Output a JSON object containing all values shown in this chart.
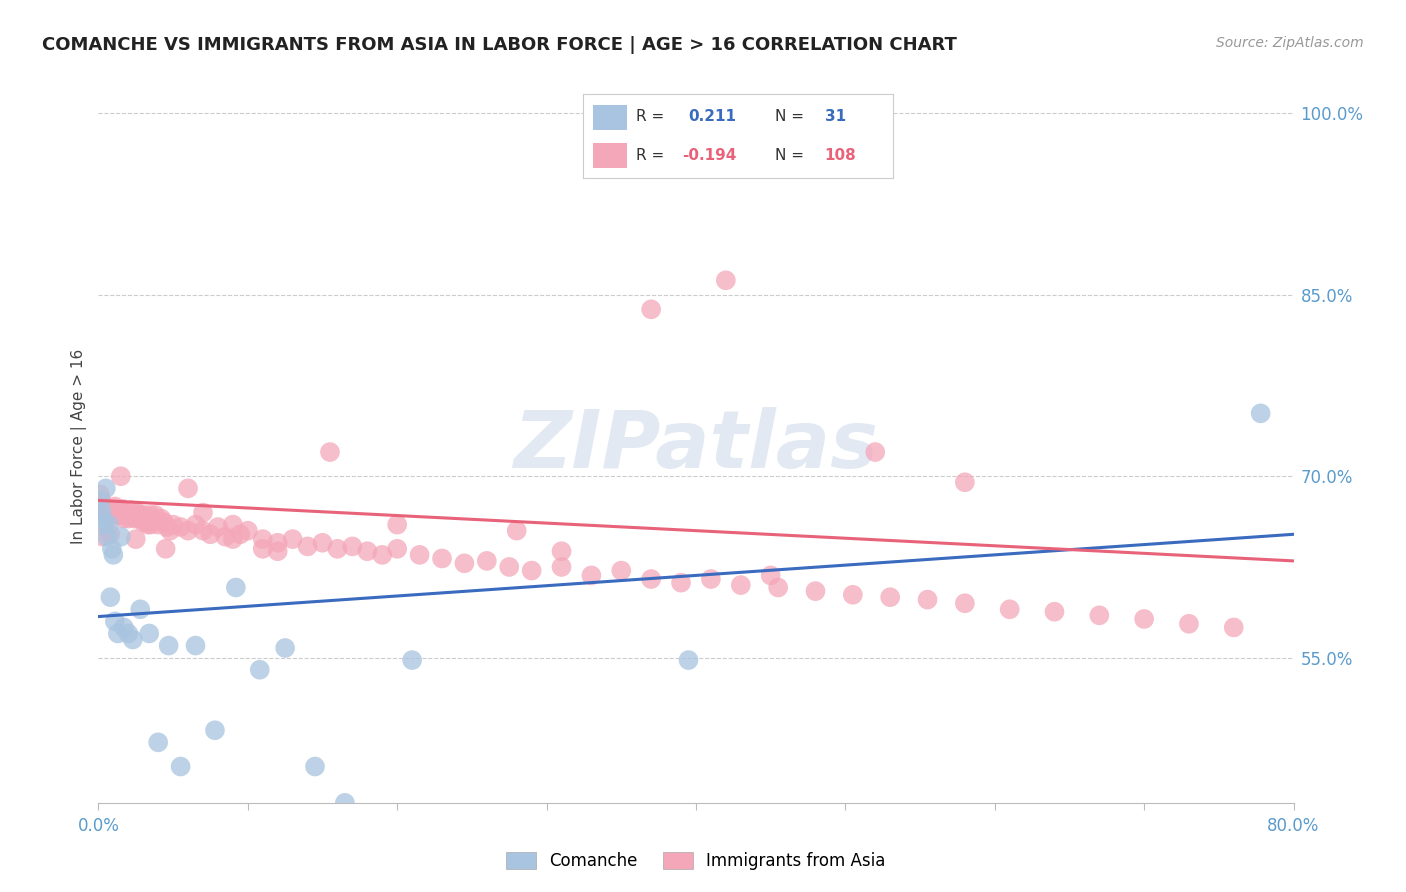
{
  "title": "COMANCHE VS IMMIGRANTS FROM ASIA IN LABOR FORCE | AGE > 16 CORRELATION CHART",
  "source": "Source: ZipAtlas.com",
  "ylabel": "In Labor Force | Age > 16",
  "xlim": [
    0.0,
    0.8
  ],
  "ylim": [
    0.43,
    1.02
  ],
  "yticks_right": [
    0.55,
    0.7,
    0.85,
    1.0
  ],
  "ytick_right_labels": [
    "55.0%",
    "70.0%",
    "85.0%",
    "100.0%"
  ],
  "comanche_color": "#a8c4e0",
  "asia_color": "#f4a7b9",
  "comanche_line_color": "#3a6bbf",
  "asia_line_color": "#e8637a",
  "background_color": "#ffffff",
  "grid_color": "#cccccc",
  "comanche_x": [
    0.001,
    0.002,
    0.003,
    0.004,
    0.005,
    0.006,
    0.007,
    0.008,
    0.009,
    0.01,
    0.011,
    0.013,
    0.015,
    0.017,
    0.02,
    0.023,
    0.028,
    0.034,
    0.04,
    0.047,
    0.055,
    0.065,
    0.078,
    0.092,
    0.108,
    0.125,
    0.145,
    0.165,
    0.21,
    0.395,
    0.778
  ],
  "comanche_y": [
    0.68,
    0.672,
    0.665,
    0.66,
    0.69,
    0.65,
    0.66,
    0.6,
    0.64,
    0.635,
    0.58,
    0.57,
    0.65,
    0.575,
    0.57,
    0.565,
    0.59,
    0.57,
    0.48,
    0.56,
    0.46,
    0.56,
    0.49,
    0.608,
    0.54,
    0.558,
    0.46,
    0.43,
    0.548,
    0.548,
    0.752
  ],
  "asia_x": [
    0.001,
    0.002,
    0.003,
    0.004,
    0.005,
    0.006,
    0.007,
    0.008,
    0.009,
    0.01,
    0.011,
    0.012,
    0.013,
    0.014,
    0.015,
    0.016,
    0.017,
    0.018,
    0.019,
    0.02,
    0.021,
    0.022,
    0.023,
    0.024,
    0.025,
    0.026,
    0.027,
    0.028,
    0.029,
    0.03,
    0.031,
    0.032,
    0.033,
    0.034,
    0.035,
    0.036,
    0.038,
    0.04,
    0.042,
    0.044,
    0.046,
    0.048,
    0.05,
    0.055,
    0.06,
    0.065,
    0.07,
    0.075,
    0.08,
    0.085,
    0.09,
    0.095,
    0.1,
    0.11,
    0.12,
    0.13,
    0.14,
    0.15,
    0.16,
    0.17,
    0.18,
    0.19,
    0.2,
    0.215,
    0.23,
    0.245,
    0.26,
    0.275,
    0.29,
    0.31,
    0.33,
    0.35,
    0.37,
    0.39,
    0.41,
    0.43,
    0.455,
    0.48,
    0.505,
    0.53,
    0.555,
    0.58,
    0.61,
    0.64,
    0.67,
    0.7,
    0.73,
    0.76,
    0.37,
    0.42,
    0.52,
    0.58,
    0.31,
    0.155,
    0.28,
    0.45,
    0.06,
    0.09,
    0.12,
    0.2,
    0.015,
    0.035,
    0.07,
    0.11,
    0.003,
    0.008,
    0.025,
    0.045
  ],
  "asia_y": [
    0.685,
    0.68,
    0.675,
    0.672,
    0.673,
    0.668,
    0.672,
    0.67,
    0.668,
    0.673,
    0.675,
    0.67,
    0.668,
    0.672,
    0.668,
    0.673,
    0.665,
    0.668,
    0.67,
    0.665,
    0.668,
    0.672,
    0.668,
    0.665,
    0.668,
    0.67,
    0.665,
    0.668,
    0.665,
    0.662,
    0.668,
    0.665,
    0.66,
    0.662,
    0.668,
    0.665,
    0.668,
    0.66,
    0.665,
    0.662,
    0.658,
    0.655,
    0.66,
    0.658,
    0.655,
    0.66,
    0.655,
    0.652,
    0.658,
    0.65,
    0.648,
    0.652,
    0.655,
    0.648,
    0.645,
    0.648,
    0.642,
    0.645,
    0.64,
    0.642,
    0.638,
    0.635,
    0.64,
    0.635,
    0.632,
    0.628,
    0.63,
    0.625,
    0.622,
    0.625,
    0.618,
    0.622,
    0.615,
    0.612,
    0.615,
    0.61,
    0.608,
    0.605,
    0.602,
    0.6,
    0.598,
    0.595,
    0.59,
    0.588,
    0.585,
    0.582,
    0.578,
    0.575,
    0.838,
    0.862,
    0.72,
    0.695,
    0.638,
    0.72,
    0.655,
    0.618,
    0.69,
    0.66,
    0.638,
    0.66,
    0.7,
    0.66,
    0.67,
    0.64,
    0.65,
    0.652,
    0.648,
    0.64
  ],
  "blue_line_x": [
    0.0,
    0.8
  ],
  "blue_line_y": [
    0.584,
    0.652
  ],
  "pink_line_x": [
    0.0,
    0.8
  ],
  "pink_line_y": [
    0.68,
    0.63
  ]
}
